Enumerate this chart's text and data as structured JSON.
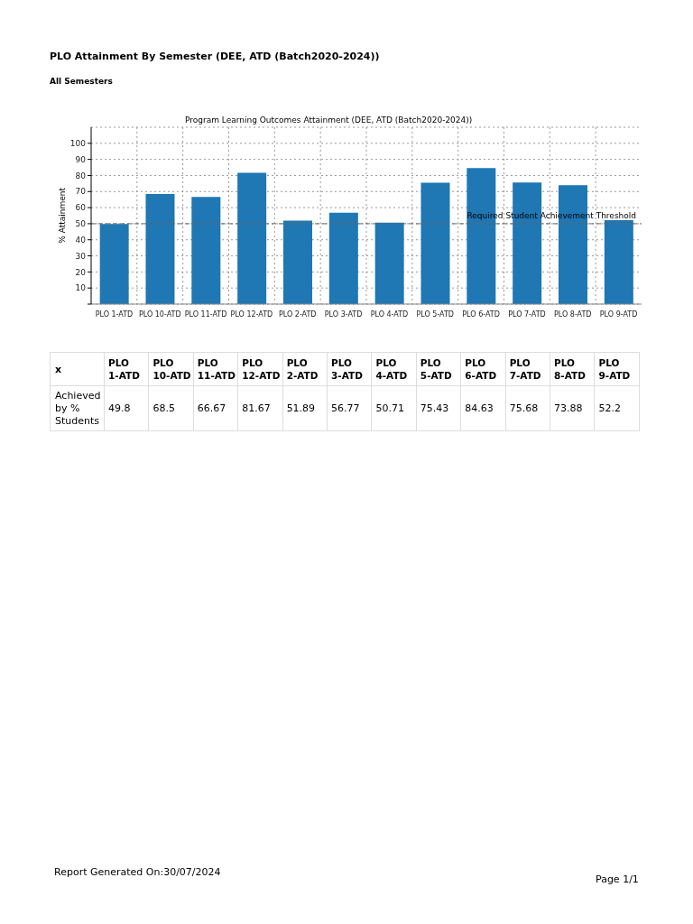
{
  "chart_data": {
    "type": "bar",
    "title": "PLO Attainment By Semester (DEE, ATD (Batch2020-2024))",
    "subtitle": "All Semesters",
    "ylabel": "% Attainment",
    "categories": [
      "PLO 1-ATD",
      "PLO 10-ATD",
      "PLO 11-ATD",
      "PLO 12-ATD",
      "PLO 2-ATD",
      "PLO 3-ATD",
      "PLO 4-ATD",
      "PLO 5-ATD",
      "PLO 6-ATD",
      "PLO 7-ATD",
      "PLO 8-ATD",
      "PLO 9-ATD"
    ],
    "values": [
      49.8,
      68.5,
      66.67,
      81.67,
      51.89,
      56.77,
      50.71,
      75.43,
      84.63,
      75.68,
      73.88,
      52.2
    ],
    "color": "#1f77b4",
    "ylim": [
      0,
      110
    ],
    "yticks": [
      {
        "value": 0,
        "label": null
      },
      10,
      20,
      30,
      40,
      50,
      60,
      70,
      80,
      90,
      100
    ],
    "grid": true,
    "ref_lines": [
      {
        "axis": "y",
        "value": 50,
        "label": "Required Student Achievement Threshold",
        "color": "#666666",
        "line_style": "dashed"
      }
    ],
    "data_labels": true,
    "annotations": [
      "Program Learning Outcomes Attainment (DEE, ATD (Batch2020-2024))",
      "x",
      "Achieved by % Students",
      "Report Generated On:30/07/2024",
      "Page 1/1"
    ]
  }
}
